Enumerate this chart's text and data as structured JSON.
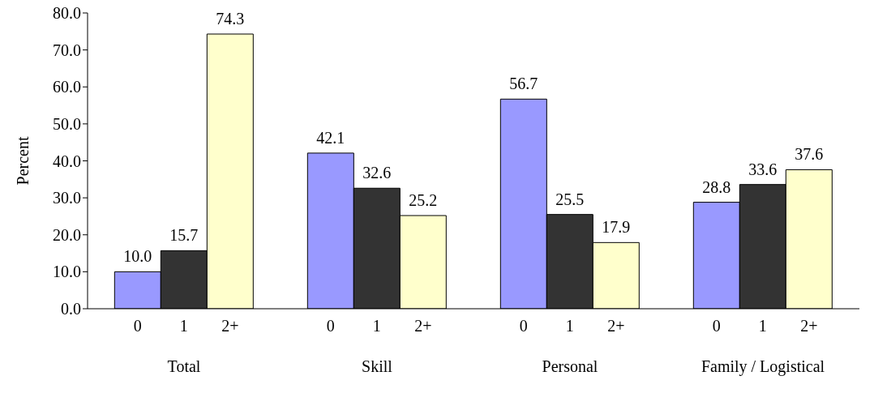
{
  "chart_data": {
    "type": "bar",
    "ylabel": "Percent",
    "categories": [
      "Total",
      "Skill",
      "Personal",
      "Family / Logistical"
    ],
    "series": [
      {
        "name": "0",
        "color": "#9999ff",
        "values": [
          10.0,
          42.1,
          56.7,
          28.8
        ],
        "value_labels": [
          "10.0",
          "42.1",
          "56.7",
          "28.8"
        ]
      },
      {
        "name": "1",
        "color": "#333333",
        "values": [
          15.7,
          32.6,
          25.5,
          33.6
        ],
        "value_labels": [
          "15.7",
          "32.6",
          "25.5",
          "33.6"
        ]
      },
      {
        "name": "2+",
        "color": "#ffffcc",
        "values": [
          74.3,
          25.2,
          17.9,
          37.6
        ],
        "value_labels": [
          "74.3",
          "25.2",
          "17.9",
          "37.6"
        ]
      }
    ],
    "ylim": [
      0,
      80
    ],
    "yticks": [
      {
        "value": 0,
        "label": "0.0"
      },
      {
        "value": 10,
        "label": "10.0"
      },
      {
        "value": 20,
        "label": "20.0"
      },
      {
        "value": 30,
        "label": "30.0"
      },
      {
        "value": 40,
        "label": "40.0"
      },
      {
        "value": 50,
        "label": "50.0"
      },
      {
        "value": 60,
        "label": "60.0"
      },
      {
        "value": 70,
        "label": "70.0"
      },
      {
        "value": 80,
        "label": "80.0"
      }
    ],
    "grid": false,
    "legend": false
  }
}
